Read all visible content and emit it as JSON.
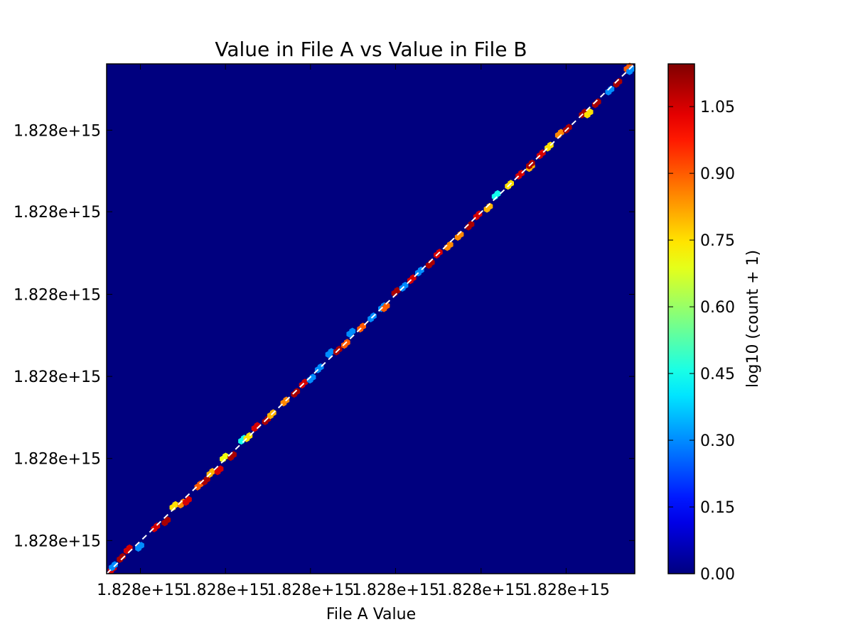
{
  "chart_data": {
    "type": "heatmap",
    "title": "Value in File A vs Value in File B",
    "xlabel": "File A Value",
    "ylabel": "",
    "x_tick_labels": [
      "1.828e+15",
      "1.828e+15",
      "1.828e+15",
      "1.828e+15",
      "1.828e+15",
      "1.828e+15"
    ],
    "y_tick_labels": [
      "1.828e+15",
      "1.828e+15",
      "1.828e+15",
      "1.828e+15",
      "1.828e+15",
      "1.828e+15"
    ],
    "xlim": [
      0,
      1
    ],
    "ylim": [
      0,
      1
    ],
    "background_color": "#00007f",
    "reference_line": {
      "style": "dashed",
      "color": "#ffffff",
      "from": [
        0,
        0
      ],
      "to": [
        1,
        1
      ]
    },
    "colorbar": {
      "label": "log10 (count + 1)",
      "range": [
        0,
        1.146
      ],
      "tick_values": [
        0.0,
        0.15,
        0.3,
        0.45,
        0.6,
        0.75,
        0.9,
        1.05
      ],
      "tick_labels": [
        "0.00",
        "0.15",
        "0.30",
        "0.45",
        "0.60",
        "0.75",
        "0.90",
        "1.05"
      ],
      "colormap": "jet"
    },
    "bins": [
      [
        0.008,
        0.006,
        1.05
      ],
      [
        0.01,
        0.012,
        0.3
      ],
      [
        0.025,
        0.028,
        1.1
      ],
      [
        0.038,
        0.045,
        1.05
      ],
      [
        0.06,
        0.05,
        0.3
      ],
      [
        0.09,
        0.088,
        1.05
      ],
      [
        0.11,
        0.1,
        1.1
      ],
      [
        0.125,
        0.13,
        0.75
      ],
      [
        0.14,
        0.135,
        0.85
      ],
      [
        0.15,
        0.14,
        1.05
      ],
      [
        0.172,
        0.17,
        0.9
      ],
      [
        0.185,
        0.18,
        1.1
      ],
      [
        0.195,
        0.195,
        0.8
      ],
      [
        0.21,
        0.2,
        1.05
      ],
      [
        0.22,
        0.225,
        0.7
      ],
      [
        0.235,
        0.228,
        1.1
      ],
      [
        0.255,
        0.26,
        0.45
      ],
      [
        0.265,
        0.265,
        0.75
      ],
      [
        0.28,
        0.285,
        1.05
      ],
      [
        0.3,
        0.298,
        1.1
      ],
      [
        0.31,
        0.31,
        0.8
      ],
      [
        0.335,
        0.335,
        0.85
      ],
      [
        0.355,
        0.352,
        1.1
      ],
      [
        0.37,
        0.37,
        1.05
      ],
      [
        0.385,
        0.38,
        0.3
      ],
      [
        0.4,
        0.4,
        0.3
      ],
      [
        0.42,
        0.43,
        0.3
      ],
      [
        0.435,
        0.435,
        1.1
      ],
      [
        0.45,
        0.448,
        0.9
      ],
      [
        0.46,
        0.47,
        0.3
      ],
      [
        0.48,
        0.48,
        0.9
      ],
      [
        0.5,
        0.5,
        0.3
      ],
      [
        0.52,
        0.52,
        0.3
      ],
      [
        0.525,
        0.52,
        0.9
      ],
      [
        0.545,
        0.55,
        1.1
      ],
      [
        0.56,
        0.56,
        0.3
      ],
      [
        0.575,
        0.575,
        1.05
      ],
      [
        0.59,
        0.59,
        0.3
      ],
      [
        0.61,
        0.605,
        1.1
      ],
      [
        0.625,
        0.625,
        1.05
      ],
      [
        0.645,
        0.64,
        0.85
      ],
      [
        0.665,
        0.66,
        0.85
      ],
      [
        0.685,
        0.68,
        1.1
      ],
      [
        0.7,
        0.7,
        1.05
      ],
      [
        0.72,
        0.715,
        0.8
      ],
      [
        0.735,
        0.74,
        0.45
      ],
      [
        0.76,
        0.76,
        0.75
      ],
      [
        0.78,
        0.78,
        1.05
      ],
      [
        0.8,
        0.795,
        0.8
      ],
      [
        0.8,
        0.8,
        1.1
      ],
      [
        0.82,
        0.82,
        1.05
      ],
      [
        0.835,
        0.835,
        0.75
      ],
      [
        0.855,
        0.86,
        0.85
      ],
      [
        0.87,
        0.87,
        1.1
      ],
      [
        0.9,
        0.9,
        1.1
      ],
      [
        0.91,
        0.9,
        0.75
      ],
      [
        0.925,
        0.92,
        1.1
      ],
      [
        0.95,
        0.945,
        0.3
      ],
      [
        0.965,
        0.96,
        1.1
      ],
      [
        0.985,
        0.99,
        0.9
      ],
      [
        0.99,
        0.985,
        0.3
      ]
    ],
    "grid": false,
    "legend": "none"
  }
}
